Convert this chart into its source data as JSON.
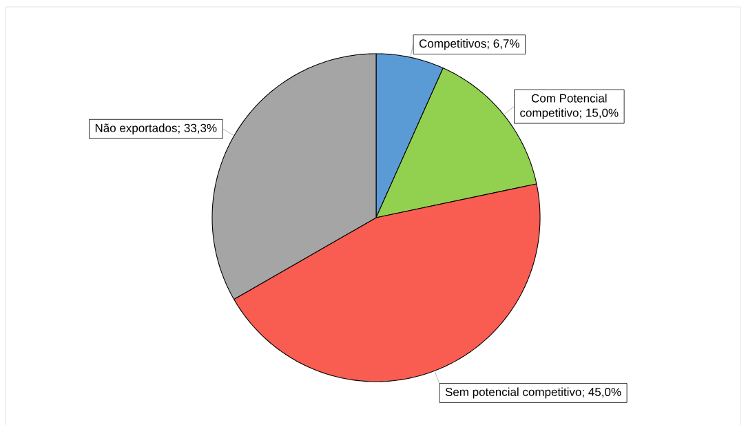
{
  "chart_data": {
    "type": "pie",
    "categories": [
      "Competitivos; 6,7%",
      "Com Potencial competitivo; 15,0%",
      "Sem potencial competitivo; 45,0%",
      "Não exportados; 33,3%"
    ],
    "values": [
      6.7,
      15.0,
      45.0,
      33.3
    ],
    "colors": [
      "#5b9bd5",
      "#92d050",
      "#f95c50",
      "#a5a5a5"
    ]
  }
}
